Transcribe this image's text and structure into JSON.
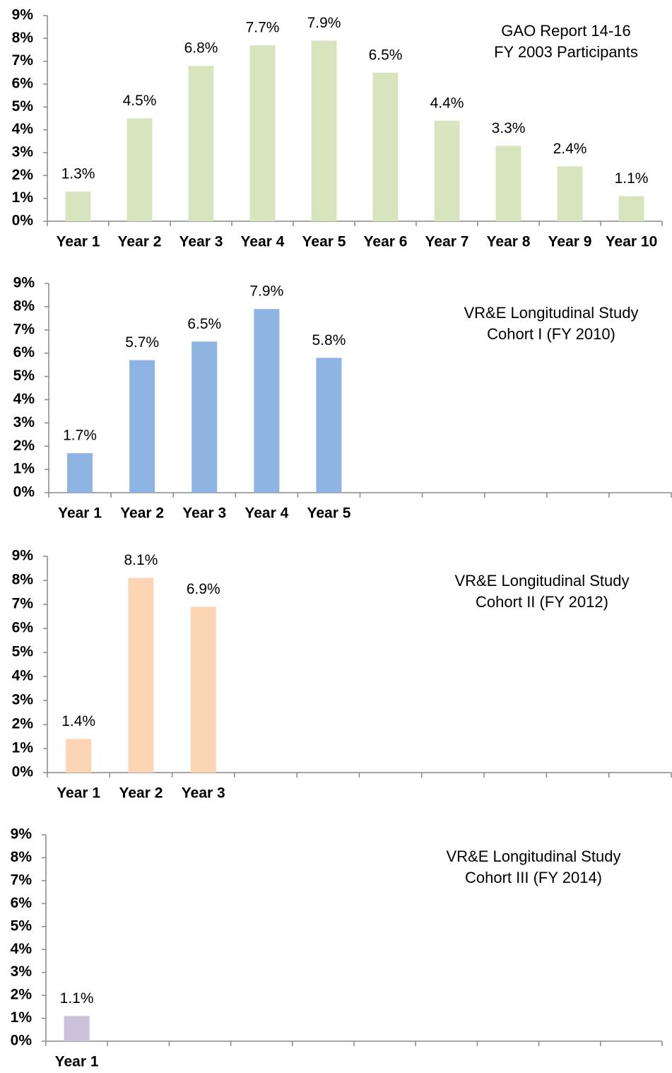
{
  "chart_data": [
    {
      "type": "bar",
      "title_lines": [
        "GAO Report 14-16",
        "FY 2003 Participants"
      ],
      "categories": [
        "Year 1",
        "Year 2",
        "Year 3",
        "Year 4",
        "Year 5",
        "Year 6",
        "Year 7",
        "Year 8",
        "Year 9",
        "Year 10"
      ],
      "values": [
        1.3,
        4.5,
        6.8,
        7.7,
        7.9,
        6.5,
        4.4,
        3.3,
        2.4,
        1.1
      ],
      "value_labels": [
        "1.3%",
        "4.5%",
        "6.8%",
        "7.7%",
        "7.9%",
        "6.5%",
        "4.4%",
        "3.3%",
        "2.4%",
        "1.1%"
      ],
      "color": "#d7e4bd",
      "ylim": [
        0,
        9
      ],
      "yticks": [
        {
          "value": 0,
          "label": "0%"
        },
        {
          "value": 1,
          "label": "1%"
        },
        {
          "value": 2,
          "label": "2%"
        },
        {
          "value": 3,
          "label": "3%"
        },
        {
          "value": 4,
          "label": "4%"
        },
        {
          "value": 5,
          "label": "5%"
        },
        {
          "value": 6,
          "label": "6%"
        },
        {
          "value": 7,
          "label": "7%"
        },
        {
          "value": 8,
          "label": "8%"
        },
        {
          "value": 9,
          "label": "9%"
        }
      ]
    },
    {
      "type": "bar",
      "title_lines": [
        "VR&E Longitudinal Study",
        "Cohort I (FY 2010)"
      ],
      "categories": [
        "Year 1",
        "Year 2",
        "Year 3",
        "Year 4",
        "Year 5",
        null,
        null,
        null,
        null,
        null
      ],
      "values": [
        1.7,
        5.7,
        6.5,
        7.9,
        5.8,
        null,
        null,
        null,
        null,
        null
      ],
      "value_labels": [
        "1.7%",
        "5.7%",
        "6.5%",
        "7.9%",
        "5.8%",
        null,
        null,
        null,
        null,
        null
      ],
      "color": "#8eb4e3",
      "ylim": [
        0,
        9
      ],
      "yticks": [
        {
          "value": 0,
          "label": "0%"
        },
        {
          "value": 1,
          "label": "1%"
        },
        {
          "value": 2,
          "label": "2%"
        },
        {
          "value": 3,
          "label": "3%"
        },
        {
          "value": 4,
          "label": "4%"
        },
        {
          "value": 5,
          "label": "5%"
        },
        {
          "value": 6,
          "label": "6%"
        },
        {
          "value": 7,
          "label": "7%"
        },
        {
          "value": 8,
          "label": "8%"
        },
        {
          "value": 9,
          "label": "9%"
        }
      ]
    },
    {
      "type": "bar",
      "title_lines": [
        "VR&E Longitudinal Study",
        "Cohort II (FY 2012)"
      ],
      "categories": [
        "Year 1",
        "Year 2",
        "Year 3",
        null,
        null,
        null,
        null,
        null,
        null,
        null
      ],
      "values": [
        1.4,
        8.1,
        6.9,
        null,
        null,
        null,
        null,
        null,
        null,
        null
      ],
      "value_labels": [
        "1.4%",
        "8.1%",
        "6.9%",
        null,
        null,
        null,
        null,
        null,
        null,
        null
      ],
      "color": "#fcd5b5",
      "ylim": [
        0,
        9
      ],
      "yticks": [
        {
          "value": 0,
          "label": "0%"
        },
        {
          "value": 1,
          "label": "1%"
        },
        {
          "value": 2,
          "label": "2%"
        },
        {
          "value": 3,
          "label": "3%"
        },
        {
          "value": 4,
          "label": "4%"
        },
        {
          "value": 5,
          "label": "5%"
        },
        {
          "value": 6,
          "label": "6%"
        },
        {
          "value": 7,
          "label": "7%"
        },
        {
          "value": 8,
          "label": "8%"
        },
        {
          "value": 9,
          "label": "9%"
        }
      ]
    },
    {
      "type": "bar",
      "title_lines": [
        "VR&E Longitudinal Study",
        "Cohort III (FY 2014)"
      ],
      "categories": [
        "Year 1",
        null,
        null,
        null,
        null,
        null,
        null,
        null,
        null,
        null
      ],
      "values": [
        1.1,
        null,
        null,
        null,
        null,
        null,
        null,
        null,
        null,
        null
      ],
      "value_labels": [
        "1.1%",
        null,
        null,
        null,
        null,
        null,
        null,
        null,
        null,
        null
      ],
      "color": "#ccc1da",
      "ylim": [
        0,
        9
      ],
      "yticks": [
        {
          "value": 0,
          "label": "0%"
        },
        {
          "value": 1,
          "label": "1%"
        },
        {
          "value": 2,
          "label": "2%"
        },
        {
          "value": 3,
          "label": "3%"
        },
        {
          "value": 4,
          "label": "4%"
        },
        {
          "value": 5,
          "label": "5%"
        },
        {
          "value": 6,
          "label": "6%"
        },
        {
          "value": 7,
          "label": "7%"
        },
        {
          "value": 8,
          "label": "8%"
        },
        {
          "value": 9,
          "label": "9%"
        }
      ]
    }
  ]
}
